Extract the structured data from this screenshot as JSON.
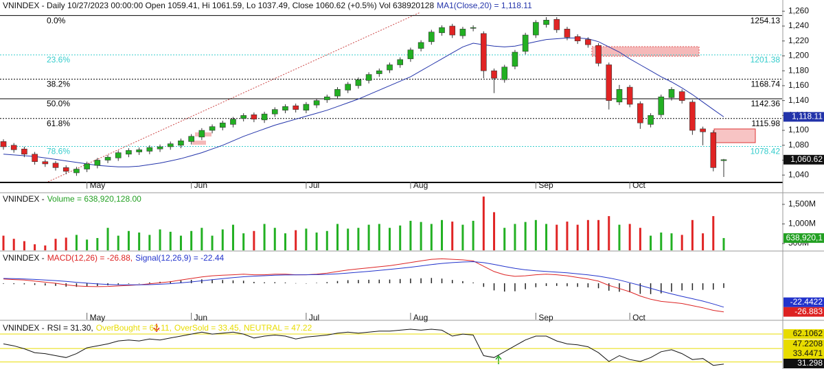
{
  "chart_data": [
    {
      "type": "candlestick",
      "title": "VNINDEX - Daily 10/27/2023 00:00:00 Open 1059.41, Hi 1061.59, Lo 1037.49, Close 1060.62 (+0.5%) Vol 638920128",
      "categories": [
        null,
        null,
        null,
        null,
        null,
        null,
        null,
        null,
        "May",
        null,
        null,
        null,
        null,
        null,
        null,
        null,
        null,
        null,
        "Jun",
        null,
        null,
        null,
        null,
        null,
        null,
        null,
        null,
        null,
        null,
        "Jul",
        null,
        null,
        null,
        null,
        null,
        null,
        null,
        null,
        null,
        "Aug",
        null,
        null,
        null,
        null,
        null,
        null,
        null,
        null,
        null,
        null,
        null,
        "Sep",
        null,
        null,
        null,
        null,
        null,
        null,
        null,
        null,
        "Oct",
        null,
        null,
        null,
        null,
        null,
        null,
        null,
        null,
        null
      ],
      "open": [
        1085,
        1080,
        1075,
        1068,
        1058,
        1056,
        1050,
        1043,
        1048,
        1053,
        1060,
        1063,
        1068,
        1071,
        1072,
        1075,
        1078,
        1080,
        1085,
        1091,
        1100,
        1104,
        1108,
        1116,
        1121,
        1114,
        1122,
        1127,
        1133,
        1127,
        1134,
        1141,
        1146,
        1154,
        1160,
        1167,
        1176,
        1181,
        1188,
        1196,
        1210,
        1219,
        1231,
        1240,
        1227,
        1237,
        1230,
        1180,
        1168,
        1186,
        1206,
        1228,
        1242,
        1249,
        1236,
        1226,
        1222,
        1214,
        1188,
        1138,
        1158,
        1136,
        1108,
        1121,
        1144,
        1152,
        1138,
        1102,
        1097,
        1059.41
      ],
      "high": [
        1088,
        1083,
        1078,
        1071,
        1061,
        1059,
        1053,
        1051,
        1058,
        1063,
        1067,
        1073,
        1076,
        1077,
        1080,
        1081,
        1085,
        1089,
        1095,
        1103,
        1108,
        1113,
        1118,
        1123,
        1124,
        1125,
        1131,
        1135,
        1136,
        1138,
        1143,
        1148,
        1158,
        1165,
        1171,
        1178,
        1183,
        1191,
        1198,
        1211,
        1221,
        1235,
        1241,
        1243,
        1239,
        1241,
        1233,
        1183,
        1188,
        1208,
        1231,
        1248,
        1252,
        1252,
        1239,
        1229,
        1225,
        1217,
        1191,
        1161,
        1161,
        1139,
        1123,
        1148,
        1158,
        1155,
        1141,
        1105,
        1100,
        1061.59
      ],
      "low": [
        1074,
        1070,
        1064,
        1054,
        1051,
        1046,
        1041,
        1039,
        1044,
        1049,
        1056,
        1059,
        1064,
        1067,
        1068,
        1071,
        1074,
        1076,
        1081,
        1087,
        1096,
        1100,
        1104,
        1112,
        1111,
        1110,
        1118,
        1123,
        1124,
        1123,
        1130,
        1137,
        1142,
        1150,
        1156,
        1163,
        1172,
        1177,
        1184,
        1192,
        1206,
        1215,
        1227,
        1224,
        1223,
        1233,
        1170,
        1150,
        1164,
        1182,
        1202,
        1224,
        1238,
        1231,
        1221,
        1216,
        1211,
        1186,
        1128,
        1134,
        1131,
        1102,
        1104,
        1117,
        1140,
        1136,
        1094,
        1080,
        1045,
        1037.49
      ],
      "close": [
        1078,
        1074,
        1068,
        1058,
        1055,
        1050,
        1045,
        1048,
        1055,
        1060,
        1064,
        1070,
        1073,
        1074,
        1077,
        1078,
        1082,
        1086,
        1092,
        1100,
        1105,
        1110,
        1115,
        1120,
        1115,
        1122,
        1128,
        1132,
        1128,
        1135,
        1140,
        1145,
        1155,
        1162,
        1168,
        1175,
        1180,
        1188,
        1195,
        1208,
        1218,
        1232,
        1238,
        1228,
        1236,
        1238,
        1180,
        1170,
        1185,
        1205,
        1228,
        1245,
        1248,
        1235,
        1225,
        1220,
        1215,
        1190,
        1140,
        1155,
        1135,
        1110,
        1120,
        1145,
        1155,
        1140,
        1100,
        1098,
        1050,
        1060.62
      ],
      "up_color": "#22b022",
      "down_color": "#e02424",
      "last_label": "1,060.62",
      "series": [
        {
          "name": "MA1(Close,20) = 1,118.11",
          "color": "#2233aa",
          "last_label": "1,118.11",
          "values": [
            1068,
            1067,
            1066,
            1065,
            1063,
            1061,
            1059,
            1057,
            1055,
            1053,
            1052,
            1051,
            1051,
            1052,
            1054,
            1056,
            1059,
            1062,
            1066,
            1070,
            1075,
            1080,
            1086,
            1092,
            1097,
            1102,
            1107,
            1111,
            1115,
            1119,
            1123,
            1127,
            1132,
            1137,
            1142,
            1148,
            1154,
            1160,
            1166,
            1172,
            1180,
            1188,
            1196,
            1204,
            1212,
            1217,
            1215,
            1213,
            1212,
            1213,
            1216,
            1219,
            1222,
            1223,
            1224,
            1224,
            1223,
            1219,
            1212,
            1205,
            1196,
            1188,
            1180,
            1172,
            1165,
            1157,
            1148,
            1138,
            1128,
            1118.11
          ]
        }
      ],
      "fib_levels": [
        {
          "label": "0.0%",
          "value": 1254.13,
          "color": "#000000",
          "style": "solid"
        },
        {
          "label": "23.6%",
          "value": 1201.38,
          "color": "#33cccc",
          "style": "dotted"
        },
        {
          "label": "38.2%",
          "value": 1168.74,
          "color": "#000000",
          "style": "dotted"
        },
        {
          "label": "50.0%",
          "value": 1142.36,
          "color": "#000000",
          "style": "solid"
        },
        {
          "label": "61.8%",
          "value": 1115.98,
          "color": "#000000",
          "style": "dotted"
        },
        {
          "label": "78.6%",
          "value": 1078.42,
          "color": "#33cccc",
          "style": "dotted"
        }
      ],
      "ylim": [
        1031,
        1275
      ],
      "yticks": [
        {
          "value": 1040,
          "label": "1,040"
        },
        {
          "value": 1060,
          "label": "1,060"
        },
        {
          "value": 1080,
          "label": "1,080"
        },
        {
          "value": 1100,
          "label": "1,100"
        },
        {
          "value": 1120,
          "label": "1,120"
        },
        {
          "value": 1140,
          "label": "1,140"
        },
        {
          "value": 1160,
          "label": "1,160"
        },
        {
          "value": 1180,
          "label": "1,180"
        },
        {
          "value": 1200,
          "label": "1,200"
        },
        {
          "value": 1220,
          "label": "1,220"
        },
        {
          "value": 1240,
          "label": "1,240"
        },
        {
          "value": 1260,
          "label": "1,260"
        }
      ]
    },
    {
      "type": "bar",
      "title": "VNINDEX -",
      "series": [
        {
          "name": "Volume = 638,920,128.00",
          "color": "#22a022",
          "last_label": "638,920,1",
          "values": [
            700000000,
            620000000,
            560000000,
            480000000,
            450000000,
            620000000,
            650000000,
            720000000,
            600000000,
            640000000,
            900000000,
            700000000,
            820000000,
            780000000,
            720000000,
            860000000,
            800000000,
            700000000,
            820000000,
            900000000,
            700000000,
            860000000,
            980000000,
            760000000,
            820000000,
            1000000000,
            900000000,
            760000000,
            840000000,
            880000000,
            780000000,
            820000000,
            1000000000,
            880000000,
            900000000,
            980000000,
            1000000000,
            900000000,
            960000000,
            1080000000,
            1050000000,
            1000000000,
            1100000000,
            1060000000,
            980000000,
            1080000000,
            1700000000,
            1300000000,
            900000000,
            1000000000,
            1050000000,
            1100000000,
            1000000000,
            980000000,
            1060000000,
            980000000,
            1100000000,
            1100000000,
            1200000000,
            980000000,
            1000000000,
            900000000,
            700000000,
            780000000,
            760000000,
            720000000,
            1100000000,
            760000000,
            1200000000,
            638920128
          ]
        }
      ],
      "ylim": [
        325000000,
        1780000000
      ],
      "yticks": [
        {
          "value": 500000000,
          "label": "500M"
        },
        {
          "value": 1000000000,
          "label": "1,000M"
        },
        {
          "value": 1500000000,
          "label": "1,500M"
        }
      ]
    },
    {
      "type": "line",
      "title": "VNINDEX -",
      "series": [
        {
          "name": "MACD(12,26) = -26.88,",
          "color": "#dd2222",
          "values": [
            4,
            3.5,
            3,
            2,
            1,
            0,
            -1.5,
            -2.5,
            -3,
            -3.2,
            -3,
            -2.5,
            -2,
            -1.5,
            -0.5,
            0.5,
            1.5,
            3,
            4.5,
            6,
            7,
            7.5,
            8,
            8.5,
            8,
            8,
            8.5,
            8.5,
            8,
            8,
            8.5,
            9.5,
            11,
            12.5,
            13.5,
            14.5,
            15.5,
            16.5,
            18,
            19.5,
            21,
            22.5,
            23,
            22.5,
            22,
            21,
            16,
            11,
            8,
            6.5,
            7,
            8,
            8.5,
            8,
            7,
            5.5,
            4,
            2,
            -2,
            -5,
            -8,
            -12,
            -15,
            -17,
            -18,
            -19,
            -21,
            -23,
            -25.5,
            -26.883
          ]
        },
        {
          "name": "Signal(12,26,9) = -22.44",
          "color": "#2233cc",
          "values": [
            4.5,
            4.3,
            4,
            3.6,
            3.1,
            2.5,
            1.7,
            0.9,
            0.1,
            -0.6,
            -1.1,
            -1.4,
            -1.5,
            -1.5,
            -1.3,
            -0.9,
            -0.4,
            0.4,
            1.3,
            2.3,
            3.4,
            4.4,
            5.3,
            6.1,
            6.7,
            7.1,
            7.5,
            7.8,
            7.9,
            8,
            8.1,
            8.4,
            8.9,
            9.6,
            10.4,
            11.2,
            12.1,
            13,
            14,
            15.1,
            16.3,
            17.5,
            18.6,
            19.4,
            20,
            20.3,
            19.4,
            17.7,
            15.8,
            14,
            12.6,
            11.7,
            11.1,
            10.5,
            9.8,
            8.9,
            7.9,
            6.7,
            5,
            3,
            0.5,
            -2,
            -4.8,
            -7.5,
            -10,
            -12.3,
            -14.5,
            -16.8,
            -19.5,
            -22.4422
          ]
        }
      ],
      "histogram": {
        "color": "#222222",
        "values": [
          -0.5,
          -0.8,
          -1,
          -1.6,
          -2.1,
          -2.5,
          -3.2,
          -3.4,
          -3.1,
          -2.6,
          -1.9,
          -1.1,
          -0.5,
          0,
          0.8,
          1.4,
          1.9,
          2.6,
          3.2,
          3.7,
          3.6,
          3.1,
          2.7,
          2.4,
          1.3,
          0.9,
          1,
          0.7,
          0.1,
          0,
          0.4,
          1.1,
          2.1,
          2.9,
          3.1,
          3.3,
          3.4,
          3.5,
          4,
          4.4,
          4.7,
          5,
          4.4,
          3.1,
          2,
          0.7,
          -3.4,
          -6.7,
          -7.8,
          -7.5,
          -5.6,
          -3.7,
          -2.6,
          -2.5,
          -2.8,
          -3.4,
          -3.9,
          -4.7,
          -7,
          -8,
          -8.5,
          -10,
          -10.2,
          -9.5,
          -8,
          -6.7,
          -6.5,
          -6.2,
          -6,
          -4.4
        ]
      },
      "ylim": [
        -31.6,
        29
      ]
    },
    {
      "type": "line",
      "title": "VNINDEX -",
      "series": [
        {
          "name": "RSI = 31.30,",
          "color": "#111111",
          "values": [
            52,
            50,
            47,
            43,
            42,
            40,
            38,
            42,
            48,
            50,
            52,
            55,
            56,
            55,
            57,
            56,
            58,
            60,
            62,
            64,
            62,
            63,
            64,
            62,
            58,
            60,
            61,
            60,
            57,
            59,
            60,
            61,
            63,
            64,
            63,
            64,
            65,
            65,
            66,
            67,
            66,
            67,
            66,
            60,
            62,
            61,
            40,
            38,
            44,
            50,
            56,
            60,
            60,
            55,
            52,
            51,
            49,
            43,
            34,
            40,
            36,
            34,
            38,
            44,
            46,
            42,
            36,
            37,
            30,
            31.298
          ]
        }
      ],
      "levels": [
        {
          "name": "OverBought = 62.11,",
          "value": 62.1062,
          "color": "#e8dc00"
        },
        {
          "name": "OverSold = 33.45,",
          "value": 33.4471,
          "color": "#e8dc00"
        },
        {
          "name": "NEUTRAL = 47.22",
          "value": 47.2208,
          "color": "#e8dc00"
        }
      ],
      "ylim": [
        27,
        74
      ]
    }
  ]
}
